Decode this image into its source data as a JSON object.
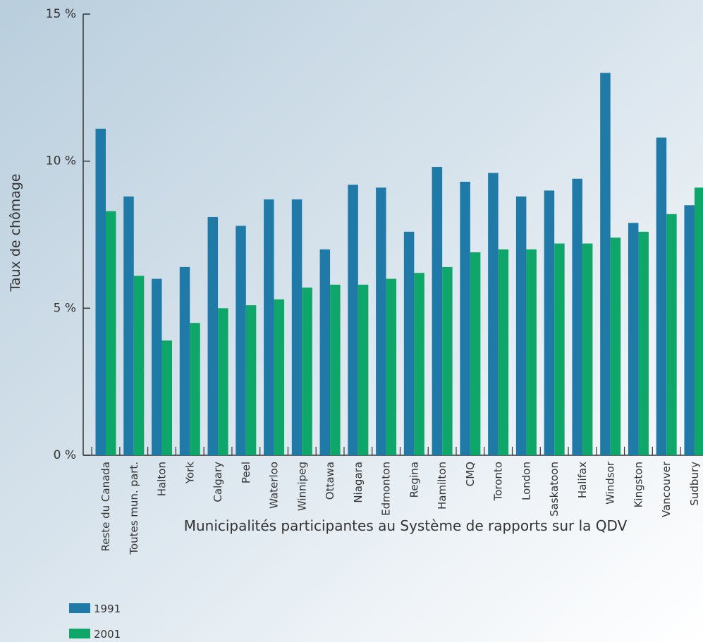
{
  "chart_data": {
    "type": "bar",
    "x_label": "Municipalités participantes au Système de rapports sur la QDV",
    "y_label": "Taux de chômage",
    "categories": [
      "Reste du Canada",
      "Toutes mun. part.",
      "Halton",
      "York",
      "Calgary",
      "Peel",
      "Waterloo",
      "Winnipeg",
      "Ottawa",
      "Niagara",
      "Edmonton",
      "Regina",
      "Hamilton",
      "CMQ",
      "Toronto",
      "London",
      "Saskatoon",
      "Halifax",
      "Windsor",
      "Kingston",
      "Vancouver",
      "Sudbury"
    ],
    "series": [
      {
        "name": "1991",
        "color": "#1f7aa8",
        "values": [
          11.1,
          8.8,
          6.0,
          6.4,
          8.1,
          7.8,
          8.7,
          8.7,
          7.0,
          9.2,
          9.1,
          7.6,
          9.8,
          9.3,
          9.6,
          8.8,
          9.0,
          9.4,
          13.0,
          7.9,
          10.8,
          8.5
        ]
      },
      {
        "name": "2001",
        "color": "#0fa66a",
        "values": [
          8.3,
          6.1,
          3.9,
          4.5,
          5.0,
          5.1,
          5.3,
          5.7,
          5.8,
          5.8,
          6.0,
          6.2,
          6.4,
          6.9,
          7.0,
          7.0,
          7.2,
          7.2,
          7.4,
          7.6,
          8.2,
          9.1
        ]
      }
    ],
    "ylim": [
      0,
      15
    ],
    "yticks": [
      {
        "value": 0,
        "label": "0 %"
      },
      {
        "value": 5,
        "label": "5 %"
      },
      {
        "value": 10,
        "label": "10 %"
      },
      {
        "value": 15,
        "label": "15 %"
      }
    ],
    "legend": "bottom-left"
  }
}
